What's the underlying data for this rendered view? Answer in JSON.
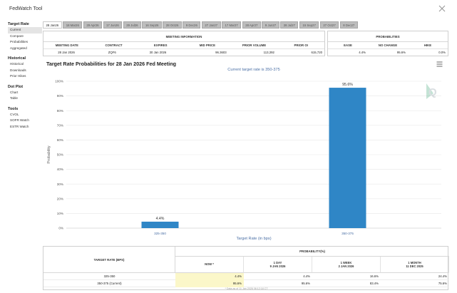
{
  "app": {
    "title": "FedWatch Tool",
    "close_icon": "close-icon"
  },
  "sidebar": [
    {
      "heading": "Target Rate",
      "items": [
        {
          "label": "Current",
          "active": true
        },
        {
          "label": "Compare",
          "active": false
        },
        {
          "label": "Probabilities",
          "active": false
        },
        {
          "label": "Aggregated",
          "active": false
        }
      ]
    },
    {
      "heading": "Historical",
      "items": [
        {
          "label": "Historical",
          "active": false
        },
        {
          "label": "Downloads",
          "active": false
        },
        {
          "label": "Prior Hikes",
          "active": false
        }
      ]
    },
    {
      "heading": "Dot Plot",
      "items": [
        {
          "label": "Chart",
          "active": false
        },
        {
          "label": "Table",
          "active": false
        }
      ]
    },
    {
      "heading": "Tools",
      "items": [
        {
          "label": "CVOL",
          "active": false
        },
        {
          "label": "SOFR Watch",
          "active": false
        },
        {
          "label": "ESTR Watch",
          "active": false
        }
      ]
    }
  ],
  "tabs": [
    {
      "label": "28 Jan26",
      "active": true
    },
    {
      "label": "18 Mar26",
      "active": false
    },
    {
      "label": "29 Apr26",
      "active": false
    },
    {
      "label": "17 Jun26",
      "active": false
    },
    {
      "label": "29 Jul26",
      "active": false
    },
    {
      "label": "16 Sep26",
      "active": false
    },
    {
      "label": "28 Oct26",
      "active": false
    },
    {
      "label": "9 Dec26",
      "active": false
    },
    {
      "label": "27 Jan27",
      "active": false
    },
    {
      "label": "17 Mar27",
      "active": false
    },
    {
      "label": "28 Apr27",
      "active": false
    },
    {
      "label": "9 Jun27",
      "active": false
    },
    {
      "label": "28 Jul27",
      "active": false
    },
    {
      "label": "15 Sep27",
      "active": false
    },
    {
      "label": "27 Oct27",
      "active": false
    },
    {
      "label": "8 Dec27",
      "active": false
    }
  ],
  "meeting_info": {
    "heading": "MEETING INFORMATION",
    "columns": [
      "MEETING DATE",
      "CONTRACT",
      "EXPIRES",
      "MID PRICE",
      "PRIOR VOLUME",
      "PRIOR OI"
    ],
    "values": [
      "28 Jan 2026",
      "ZQF6",
      "30 Jan 2026",
      "96.3603",
      "113,392",
      "615,720"
    ]
  },
  "probabilities": {
    "heading": "PROBABILITIES",
    "columns": [
      "EASE",
      "NO CHANGE",
      "HIKE"
    ],
    "values": [
      "4.4%",
      "95.6%",
      "0.0%"
    ]
  },
  "chart": {
    "title": "Target Rate Probabilities for 28 Jan 2026 Fed Meeting",
    "menu_icon": "hamburger-menu-icon",
    "watermark_icon": "q-logo-icon",
    "accent_color": "#2f86c6",
    "axis_color": "#4a6fa5"
  },
  "chart_data": {
    "type": "bar",
    "subtitle": "Current target rate is 350-375",
    "categories": [
      "325-350",
      "350-375"
    ],
    "values": [
      4.4,
      95.6
    ],
    "data_labels": [
      "4.4%",
      "95.6%"
    ],
    "xlabel": "Target Rate (in bps)",
    "ylabel": "Probability",
    "ylim": [
      0,
      100
    ],
    "yticks": [
      "0%",
      "10%",
      "20%",
      "30%",
      "40%",
      "50%",
      "60%",
      "70%",
      "80%",
      "90%",
      "100%"
    ],
    "grid": true,
    "legend": "none"
  },
  "bottom_table": {
    "rate_heading": "TARGET RATE (BPS)",
    "prob_heading": "PROBABILITY(%)",
    "columns": [
      {
        "line1": "NOW *",
        "line2": ""
      },
      {
        "line1": "1 DAY",
        "line2": "9 JAN 2026"
      },
      {
        "line1": "1 WEEK",
        "line2": "2 JAN 2026"
      },
      {
        "line1": "1 MONTH",
        "line2": "11 DEC 2025"
      }
    ],
    "rows": [
      {
        "rate": "325-350",
        "values": [
          "4.4%",
          "4.4%",
          "16.6%",
          "24.4%"
        ]
      },
      {
        "rate": "350-375 (Current)",
        "values": [
          "95.6%",
          "95.6%",
          "83.4%",
          "75.6%"
        ]
      }
    ],
    "footnote": "* Data as of 11 Jan 2026 06:12:18 CT"
  }
}
